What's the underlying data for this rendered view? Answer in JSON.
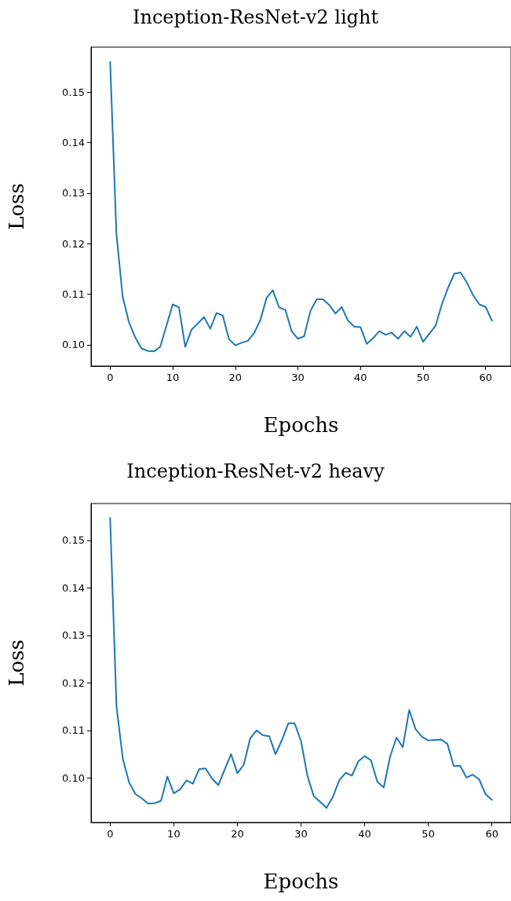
{
  "chart_data": [
    {
      "type": "line",
      "title": "Inception-ResNet-v2 light",
      "xlabel": "Epochs",
      "ylabel": "Loss",
      "xlim": [
        -3.05,
        64.05
      ],
      "ylim": [
        0.0958,
        0.1589
      ],
      "xticks": [
        0,
        10,
        20,
        30,
        40,
        50,
        60
      ],
      "yticks": [
        {
          "value": 0.1,
          "label": "0.10"
        },
        {
          "value": 0.11,
          "label": "0.11"
        },
        {
          "value": 0.12,
          "label": "0.12"
        },
        {
          "value": 0.13,
          "label": "0.13"
        },
        {
          "value": 0.14,
          "label": "0.14"
        },
        {
          "value": 0.15,
          "label": "0.15"
        }
      ],
      "grid": false,
      "x": [
        0,
        1,
        2,
        3,
        4,
        5,
        6,
        7,
        8,
        9,
        10,
        11,
        12,
        13,
        14,
        15,
        16,
        17,
        18,
        19,
        20,
        21,
        22,
        23,
        24,
        25,
        26,
        27,
        28,
        29,
        30,
        31,
        32,
        33,
        34,
        35,
        36,
        37,
        38,
        39,
        40,
        41,
        42,
        43,
        44,
        45,
        46,
        47,
        48,
        49,
        50,
        51,
        52,
        53,
        54,
        55,
        56,
        57,
        58,
        59,
        60,
        61
      ],
      "series": [
        {
          "color": "#1f77b4",
          "values": [
            0.156,
            0.122,
            0.1095,
            0.1045,
            0.1015,
            0.0993,
            0.0988,
            0.0987,
            0.0996,
            0.1038,
            0.108,
            0.1074,
            0.0996,
            0.103,
            0.1042,
            0.1055,
            0.1032,
            0.1063,
            0.1058,
            0.1011,
            0.0999,
            0.1004,
            0.1008,
            0.1023,
            0.1049,
            0.1093,
            0.1108,
            0.1074,
            0.1069,
            0.1027,
            0.1012,
            0.1017,
            0.1067,
            0.109,
            0.109,
            0.1079,
            0.1062,
            0.1075,
            0.1048,
            0.1036,
            0.1035,
            0.1002,
            0.1013,
            0.1027,
            0.102,
            0.1024,
            0.1012,
            0.1027,
            0.1016,
            0.1036,
            0.1006,
            0.1022,
            0.1038,
            0.108,
            0.1113,
            0.1141,
            0.1143,
            0.1123,
            0.1098,
            0.108,
            0.1075,
            0.1048
          ]
        }
      ]
    },
    {
      "type": "line",
      "title": "Inception-ResNet-v2 heavy",
      "xlabel": "Epochs",
      "ylabel": "Loss",
      "xlim": [
        -3,
        63
      ],
      "ylim": [
        0.09065,
        0.15775
      ],
      "xticks": [
        0,
        10,
        20,
        30,
        40,
        50,
        60
      ],
      "yticks": [
        {
          "value": 0.1,
          "label": "0.10"
        },
        {
          "value": 0.11,
          "label": "0.11"
        },
        {
          "value": 0.12,
          "label": "0.12"
        },
        {
          "value": 0.13,
          "label": "0.13"
        },
        {
          "value": 0.14,
          "label": "0.14"
        },
        {
          "value": 0.15,
          "label": "0.15"
        }
      ],
      "grid": false,
      "x": [
        0,
        1,
        2,
        3,
        4,
        5,
        6,
        7,
        8,
        9,
        10,
        11,
        12,
        13,
        14,
        15,
        16,
        17,
        18,
        19,
        20,
        21,
        22,
        23,
        24,
        25,
        26,
        27,
        28,
        29,
        30,
        31,
        32,
        33,
        34,
        35,
        36,
        37,
        38,
        39,
        40,
        41,
        42,
        43,
        44,
        45,
        46,
        47,
        48,
        49,
        50,
        51,
        52,
        53,
        54,
        55,
        56,
        57,
        58,
        59,
        60
      ],
      "series": [
        {
          "color": "#1f77b4",
          "values": [
            0.1547,
            0.115,
            0.104,
            0.099,
            0.0966,
            0.0957,
            0.0946,
            0.0947,
            0.0952,
            0.1003,
            0.0968,
            0.0976,
            0.0995,
            0.0988,
            0.1019,
            0.102,
            0.0999,
            0.0985,
            0.1018,
            0.105,
            0.101,
            0.1028,
            0.1083,
            0.11,
            0.109,
            0.1088,
            0.105,
            0.108,
            0.1115,
            0.1115,
            0.1078,
            0.1005,
            0.0962,
            0.095,
            0.0937,
            0.096,
            0.0995,
            0.1011,
            0.1005,
            0.1035,
            0.1046,
            0.1037,
            0.0992,
            0.098,
            0.1045,
            0.1085,
            0.1065,
            0.1143,
            0.1103,
            0.1087,
            0.1079,
            0.108,
            0.1081,
            0.1072,
            0.1025,
            0.1026,
            0.1001,
            0.1007,
            0.0997,
            0.0966,
            0.0954
          ]
        }
      ]
    }
  ]
}
